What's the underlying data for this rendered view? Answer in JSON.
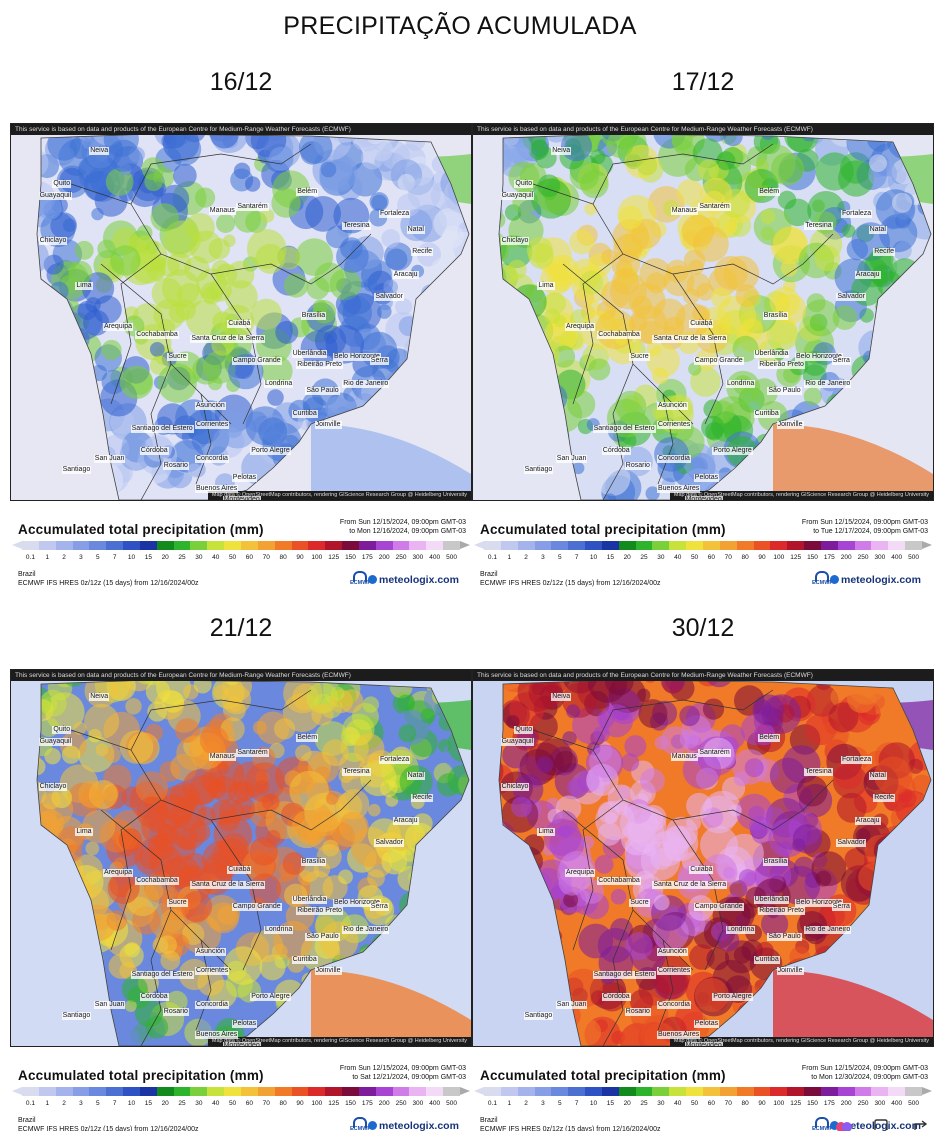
{
  "title": "PRECIPITAÇÃO ACUMULADA",
  "disclaimer": "This service is based on data and products of the European Centre for Medium-Range Weather Forecasts (ECMWF)",
  "attribution": "Map data © OpenStreetMap contributors, rendering GIScience Research Group @ Heidelberg University",
  "legend_title": "Accumulated total precipitation (mm)",
  "region": "Brazil",
  "model": "ECMWF IFS HRES 0z/12z (15 days) from 12/16/2024/00z",
  "ecmwf_label": "ECMWF",
  "brand": "meteologix.com",
  "colorbar": {
    "ticks": [
      "0.1",
      "1",
      "2",
      "3",
      "5",
      "7",
      "10",
      "15",
      "20",
      "25",
      "30",
      "40",
      "50",
      "60",
      "70",
      "80",
      "90",
      "100",
      "125",
      "150",
      "175",
      "200",
      "250",
      "300",
      "400",
      "500"
    ],
    "colors": [
      "#d9dbef",
      "#c1c8ef",
      "#a4b3ec",
      "#879ee6",
      "#6a88dd",
      "#4c6fd2",
      "#2e52c4",
      "#1a35a3",
      "#138a1e",
      "#2eb42c",
      "#7ad03a",
      "#c8e23c",
      "#f0e23c",
      "#f3c23a",
      "#f2a232",
      "#f07a28",
      "#ea5124",
      "#dc2a2a",
      "#b0152b",
      "#7a0b3a",
      "#7e1d9c",
      "#a844d4",
      "#d07ce8",
      "#eab4f3",
      "#f3daf7",
      "#c8c8c8"
    ],
    "over_color": "#aaaaaa"
  },
  "cities": [
    "Neiva",
    "Quito",
    "Guayaquil",
    "Chiclayo",
    "Lima",
    "Arequipa",
    "Manaus",
    "Belém",
    "Santarém",
    "Teresina",
    "Fortaleza",
    "Natal",
    "Recife",
    "Aracaju",
    "Salvador",
    "Cuiabá",
    "Brasília",
    "Cochabamba",
    "Santa Cruz de la Sierra",
    "Sucre",
    "Campo Grande",
    "Uberlândia",
    "Ribeirão Preto",
    "Belo Horizonte",
    "Serra",
    "Londrina",
    "São Paulo",
    "Rio de Janeiro",
    "Asunción",
    "Curitiba",
    "Joinville",
    "Corrientes",
    "Santiago del Estero",
    "Concordia",
    "Porto Alegre",
    "Pelotas",
    "Córdoba",
    "Rosario",
    "Buenos Aires",
    "Montevideo",
    "San Juan",
    "Santiago"
  ],
  "panels": [
    {
      "date": "16/12",
      "range_from": "From Sun 12/15/2024, 09:00pm GMT-03",
      "range_to": "to Mon 12/16/2024, 09:00pm GMT-03"
    },
    {
      "date": "17/12",
      "range_from": "From Sun 12/15/2024, 09:00pm GMT-03",
      "range_to": "to Tue 12/17/2024, 09:00pm GMT-03"
    },
    {
      "date": "21/12",
      "range_from": "From Sun 12/15/2024, 09:00pm GMT-03",
      "range_to": "to Sat 12/21/2024, 09:00pm GMT-03"
    },
    {
      "date": "30/12",
      "range_from": "From Sun 12/15/2024, 09:00pm GMT-03",
      "range_to": "to Mon 12/30/2024, 09:00pm GMT-03"
    }
  ]
}
